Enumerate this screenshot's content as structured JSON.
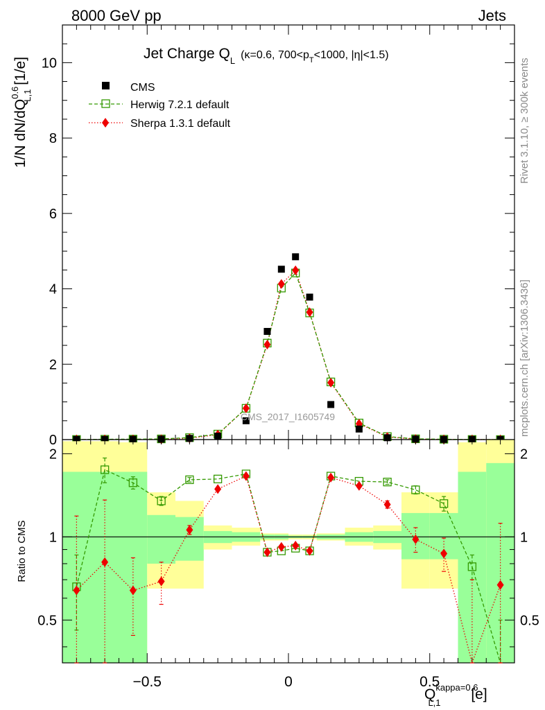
{
  "header": {
    "left": "8000 GeV pp",
    "right": "Jets"
  },
  "colors": {
    "cms": "#000000",
    "herwig": "#339900",
    "sherpa": "#ee0000",
    "band_inner": "#99ff99",
    "band_outer": "#ffff99"
  },
  "chart_data": [
    {
      "type": "scatter",
      "title_main": "Jet Charge Q",
      "title_sub": "L",
      "title_args_1": "(κ=0.6, 700<p",
      "title_args_sub": "T",
      "title_args_2": "<1000, |η|<1.5)",
      "ylabel_main": "1/N dN/dQ",
      "ylabel_sup": "0.6",
      "ylabel_sub": "L,1",
      "ylabel_unit": " [1/e]",
      "side_label_top": "Rivet 3.1.10, ≥ 300k events",
      "side_label_bottom": "mcplots.cern.ch [arXiv:1306.3436]",
      "watermark": "CMS_2017_I1605749",
      "xlim": [
        -0.8,
        0.8
      ],
      "ylim": [
        0,
        11
      ],
      "yticks": [
        "0",
        "2",
        "4",
        "6",
        "8",
        "10"
      ],
      "x": [
        -0.75,
        -0.65,
        -0.55,
        -0.45,
        -0.35,
        -0.25,
        -0.15,
        -0.075,
        -0.025,
        0.025,
        0.075,
        0.15,
        0.25,
        0.35,
        0.45,
        0.55,
        0.65,
        0.75
      ],
      "legend_position": "top-left",
      "series": [
        {
          "name": "CMS",
          "style": "black squares",
          "values": [
            0.004,
            0.005,
            0.008,
            0.013,
            0.032,
            0.09,
            0.5,
            2.87,
            4.52,
            4.85,
            3.78,
            0.93,
            0.28,
            0.05,
            0.014,
            0.006,
            0.004,
            0.002
          ]
        },
        {
          "name": "Herwig 7.2.1 default",
          "style": "green dashed, open squares",
          "values": [
            0.003,
            0.009,
            0.012,
            0.018,
            0.052,
            0.146,
            0.83,
            2.56,
            4.02,
            4.42,
            3.36,
            1.53,
            0.44,
            0.08,
            0.02,
            0.009,
            0.003,
            0.001
          ]
        },
        {
          "name": "Sherpa 1.3.1 default",
          "style": "red dotted, diamonds",
          "values": [
            0.003,
            0.004,
            0.005,
            0.009,
            0.034,
            0.133,
            0.83,
            2.52,
            4.13,
            4.49,
            3.38,
            1.51,
            0.42,
            0.07,
            0.014,
            0.005,
            0.001,
            0.001
          ]
        }
      ]
    },
    {
      "type": "scatter",
      "ylabel": "Ratio to CMS",
      "xlabel_main": "Q",
      "xlabel_sup": "kappa=0.6",
      "xlabel_sub": "L,1",
      "xlabel_unit": " [e]",
      "xlim": [
        -0.8,
        0.8
      ],
      "ylim": [
        0.35,
        2.25
      ],
      "xticks": [
        "−0.5",
        "0",
        "0.5"
      ],
      "xtick_values": [
        -0.5,
        0,
        0.5
      ],
      "yticks": [
        "0.5",
        "1",
        "2"
      ],
      "ytick_values": [
        0.5,
        1,
        2
      ],
      "reference_line": 1,
      "uncertainty_bands": {
        "edges": [
          -0.8,
          -0.6,
          -0.5,
          -0.4,
          -0.3,
          -0.2,
          -0.1,
          -0.05,
          0,
          0.05,
          0.1,
          0.2,
          0.3,
          0.4,
          0.5,
          0.6,
          0.7,
          0.8
        ],
        "inner_lo": [
          0.35,
          0.35,
          0.8,
          0.82,
          0.95,
          0.96,
          0.98,
          0.98,
          0.99,
          0.99,
          0.98,
          0.96,
          0.95,
          0.83,
          0.83,
          0.35,
          0.35
        ],
        "inner_hi": [
          1.72,
          1.72,
          1.2,
          1.18,
          1.05,
          1.04,
          1.02,
          1.02,
          1.01,
          1.01,
          1.02,
          1.04,
          1.05,
          1.22,
          1.22,
          1.72,
          1.85
        ],
        "outer_lo": [
          0.35,
          0.35,
          0.65,
          0.65,
          0.9,
          0.93,
          0.97,
          0.97,
          0.98,
          0.98,
          0.97,
          0.93,
          0.9,
          0.65,
          0.65,
          0.35,
          0.35
        ],
        "outer_hi": [
          2.22,
          2.2,
          1.45,
          1.35,
          1.1,
          1.08,
          1.03,
          1.03,
          1.02,
          1.02,
          1.03,
          1.08,
          1.1,
          1.45,
          1.45,
          2.2,
          2.3
        ]
      },
      "series": [
        {
          "name": "Herwig 7.2.1 default",
          "values": [
            0.66,
            1.75,
            1.57,
            1.35,
            1.61,
            1.62,
            1.69,
            0.88,
            0.89,
            0.91,
            0.89,
            1.66,
            1.59,
            1.58,
            1.48,
            1.32,
            0.78,
            0.3
          ],
          "err": [
            0.2,
            0.18,
            0.08,
            0.05,
            0.03,
            0.02,
            0.01,
            0.01,
            0.01,
            0.01,
            0.01,
            0.01,
            0.02,
            0.03,
            0.05,
            0.08,
            0.08,
            0.2
          ]
        },
        {
          "name": "Sherpa 1.3.1 default",
          "values": [
            0.64,
            0.81,
            0.64,
            0.69,
            1.06,
            1.49,
            1.66,
            0.88,
            0.92,
            0.93,
            0.89,
            1.64,
            1.53,
            1.31,
            0.98,
            0.87,
            0.3,
            0.67
          ],
          "err": [
            0.55,
            0.55,
            0.2,
            0.12,
            0.04,
            0.02,
            0.01,
            0.01,
            0.01,
            0.01,
            0.01,
            0.01,
            0.02,
            0.04,
            0.1,
            0.12,
            0.4,
            0.45
          ]
        }
      ]
    }
  ]
}
